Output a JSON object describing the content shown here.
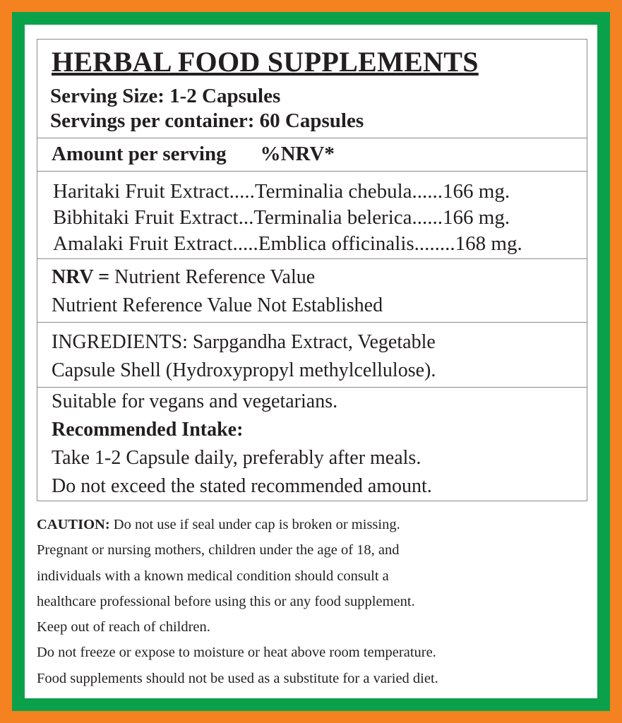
{
  "colors": {
    "outer_border": "#f48221",
    "inner_border": "#0ba14b"
  },
  "title": "HERBAL FOOD SUPPLEMENTS",
  "serving_size": "Serving Size: 1-2 Capsules",
  "servings_per_container": "Servings per container: 60 Capsules",
  "amount_header": {
    "amount": "Amount per serving",
    "nrv": "%NRV*"
  },
  "ingredients_list": [
    "Haritaki Fruit Extract.....Terminalia chebula......166 mg.",
    "Bibhitaki Fruit Extract...Terminalia belerica......166 mg.",
    "Amalaki Fruit Extract.....Emblica officinalis........168 mg."
  ],
  "nrv": {
    "label": "NRV =",
    "definition": "Nutrient Reference Value",
    "note": "Nutrient Reference Value Not Established"
  },
  "ingredients": [
    "INGREDIENTS: Sarpgandha Extract, Vegetable",
    "Capsule Shell (Hydroxypropyl methylcellulose)."
  ],
  "suitable": "Suitable for vegans and vegetarians.",
  "intake": {
    "heading": "Recommended Intake:",
    "lines": [
      "Take 1-2 Capsule daily, preferably after meals.",
      "Do not exceed the stated recommended amount."
    ]
  },
  "caution": {
    "label": "CAUTION:",
    "lines": [
      " Do not use if seal under cap is broken or missing.",
      "Pregnant or nursing mothers, children under the age of 18, and",
      "individuals with a known medical condition should consult a",
      "healthcare professional before using this or any food supplement.",
      "Keep out of reach of children.",
      "Do not freeze or expose to moisture or heat above room temperature.",
      "Food supplements should not be used as a substitute for a varied diet."
    ]
  }
}
